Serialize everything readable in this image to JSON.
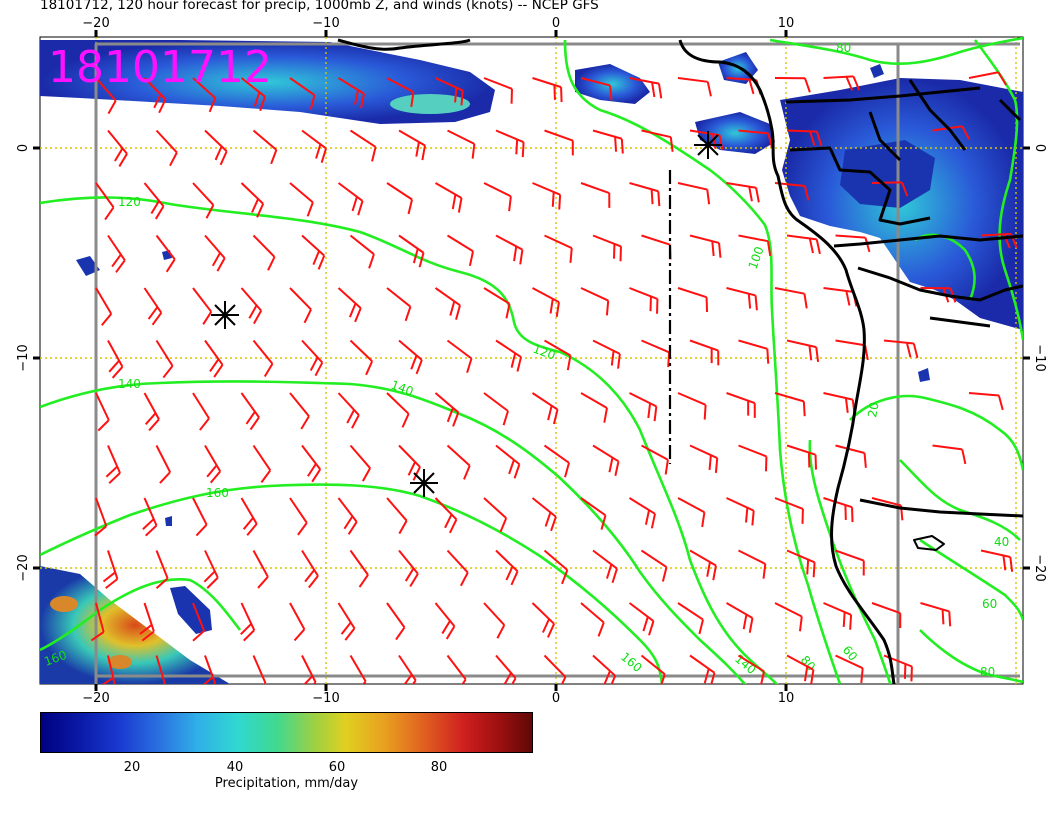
{
  "title": "18101712, 120 hour forecast for precip, 1000mb Z, and winds (knots) -- NCEP GFS",
  "stamp": "18101712",
  "map": {
    "lon_ticks_top": [
      "−20",
      "−10",
      "0",
      "10"
    ],
    "lon_ticks_bottom": [
      "−20",
      "−10",
      "0",
      "10"
    ],
    "lat_ticks_left": [
      "0",
      "−10",
      "−20"
    ],
    "lat_ticks_right": [
      "0",
      "−10",
      "−20"
    ],
    "contour_labels": {
      "c120a": "120",
      "c120b": "120",
      "c140a": "140",
      "c140b": "140",
      "c140c": "140",
      "c160a": "160",
      "c160b": "160",
      "c160c": "160",
      "c100": "100",
      "c80a": "80",
      "c80b": "80",
      "c60a": "60",
      "c60b": "60",
      "c40": "40",
      "c20": "20",
      "c80c": "80"
    },
    "colors": {
      "contour": "#22ee22",
      "barb": "#ff1111",
      "grid": "#d8c400",
      "coast": "#000000",
      "stamp": "#ff11ff"
    }
  },
  "colorbar": {
    "ticks": [
      "20",
      "40",
      "60",
      "80"
    ],
    "label": "Precipitation, mm/day"
  }
}
